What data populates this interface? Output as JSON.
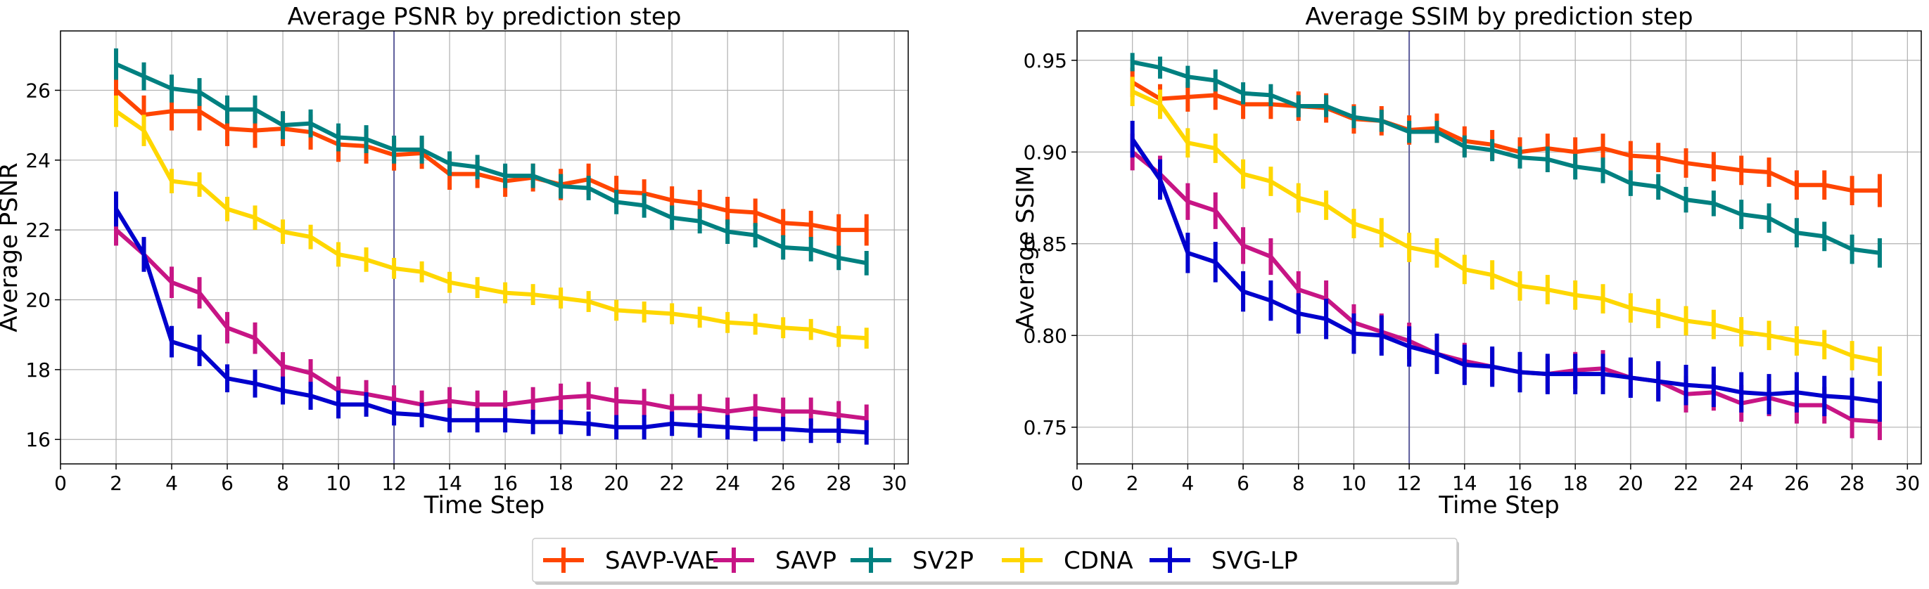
{
  "legend": {
    "placement": "bottom-center",
    "entries": [
      {
        "name": "SAVP-VAE",
        "color": "#ff4500"
      },
      {
        "name": "SAVP",
        "color": "#c71585"
      },
      {
        "name": "SV2P",
        "color": "#008080"
      },
      {
        "name": "CDNA",
        "color": "#ffd700"
      },
      {
        "name": "SVG-LP",
        "color": "#0000cd"
      }
    ]
  },
  "chart_data": [
    {
      "type": "line",
      "title": "Average PSNR by prediction step",
      "xlabel": "Time Step",
      "ylabel": "Average PSNR",
      "xlim": [
        0,
        30.5
      ],
      "ylim": [
        15.3,
        27.7
      ],
      "xticks": [
        0,
        2,
        4,
        6,
        8,
        10,
        12,
        14,
        16,
        18,
        20,
        22,
        24,
        26,
        28,
        30
      ],
      "yticks": [
        16,
        18,
        20,
        22,
        24,
        26
      ],
      "vline": 12,
      "vline_color": "#5b5b9a",
      "grid": true,
      "x": [
        2,
        3,
        4,
        5,
        6,
        7,
        8,
        9,
        10,
        11,
        12,
        13,
        14,
        15,
        16,
        17,
        18,
        19,
        20,
        21,
        22,
        23,
        24,
        25,
        26,
        27,
        28,
        29
      ],
      "series": [
        {
          "name": "SAVP-VAE",
          "color": "#ff4500",
          "values": [
            26.0,
            25.3,
            25.4,
            25.4,
            24.9,
            24.85,
            24.9,
            24.8,
            24.45,
            24.4,
            24.15,
            24.2,
            23.6,
            23.6,
            23.4,
            23.5,
            23.3,
            23.45,
            23.1,
            23.05,
            22.85,
            22.75,
            22.55,
            22.5,
            22.2,
            22.15,
            22.0,
            22.0
          ],
          "errors": [
            0.5,
            0.55,
            0.55,
            0.55,
            0.5,
            0.5,
            0.5,
            0.5,
            0.5,
            0.5,
            0.45,
            0.45,
            0.45,
            0.4,
            0.45,
            0.4,
            0.45,
            0.45,
            0.45,
            0.4,
            0.4,
            0.4,
            0.4,
            0.4,
            0.4,
            0.4,
            0.45,
            0.45
          ]
        },
        {
          "name": "SAVP",
          "color": "#c71585",
          "values": [
            22.0,
            21.3,
            20.5,
            20.2,
            19.2,
            18.9,
            18.1,
            17.9,
            17.4,
            17.3,
            17.15,
            17.0,
            17.1,
            17.0,
            17.0,
            17.1,
            17.2,
            17.25,
            17.1,
            17.05,
            16.9,
            16.9,
            16.8,
            16.9,
            16.8,
            16.8,
            16.7,
            16.6
          ],
          "errors": [
            0.45,
            0.45,
            0.45,
            0.45,
            0.45,
            0.45,
            0.4,
            0.4,
            0.4,
            0.4,
            0.4,
            0.4,
            0.4,
            0.4,
            0.4,
            0.4,
            0.4,
            0.4,
            0.4,
            0.4,
            0.4,
            0.4,
            0.4,
            0.4,
            0.4,
            0.4,
            0.4,
            0.4
          ]
        },
        {
          "name": "SV2P",
          "color": "#008080",
          "values": [
            26.75,
            26.4,
            26.05,
            25.95,
            25.45,
            25.45,
            25.0,
            25.05,
            24.65,
            24.6,
            24.3,
            24.3,
            23.9,
            23.8,
            23.55,
            23.55,
            23.25,
            23.2,
            22.8,
            22.7,
            22.35,
            22.25,
            21.95,
            21.85,
            21.5,
            21.45,
            21.2,
            21.05
          ],
          "errors": [
            0.45,
            0.4,
            0.4,
            0.4,
            0.4,
            0.4,
            0.4,
            0.4,
            0.4,
            0.4,
            0.4,
            0.4,
            0.35,
            0.35,
            0.35,
            0.35,
            0.35,
            0.35,
            0.35,
            0.35,
            0.35,
            0.35,
            0.35,
            0.35,
            0.35,
            0.35,
            0.35,
            0.35
          ]
        },
        {
          "name": "CDNA",
          "color": "#ffd700",
          "values": [
            25.4,
            24.85,
            23.4,
            23.3,
            22.6,
            22.35,
            21.95,
            21.8,
            21.3,
            21.15,
            20.9,
            20.8,
            20.5,
            20.35,
            20.2,
            20.15,
            20.05,
            19.95,
            19.7,
            19.65,
            19.6,
            19.5,
            19.35,
            19.3,
            19.2,
            19.15,
            18.95,
            18.9
          ],
          "errors": [
            0.45,
            0.45,
            0.35,
            0.35,
            0.35,
            0.35,
            0.35,
            0.35,
            0.35,
            0.35,
            0.3,
            0.3,
            0.3,
            0.3,
            0.3,
            0.3,
            0.3,
            0.3,
            0.3,
            0.3,
            0.3,
            0.3,
            0.3,
            0.3,
            0.3,
            0.3,
            0.3,
            0.3
          ]
        },
        {
          "name": "SVG-LP",
          "color": "#0000cd",
          "values": [
            22.6,
            21.3,
            18.8,
            18.55,
            17.75,
            17.6,
            17.4,
            17.25,
            17.0,
            17.0,
            16.75,
            16.7,
            16.55,
            16.55,
            16.55,
            16.5,
            16.5,
            16.45,
            16.35,
            16.35,
            16.45,
            16.4,
            16.35,
            16.3,
            16.3,
            16.25,
            16.25,
            16.2
          ],
          "errors": [
            0.5,
            0.5,
            0.45,
            0.45,
            0.4,
            0.4,
            0.4,
            0.4,
            0.4,
            0.35,
            0.35,
            0.35,
            0.35,
            0.35,
            0.35,
            0.35,
            0.35,
            0.35,
            0.35,
            0.35,
            0.35,
            0.35,
            0.35,
            0.35,
            0.35,
            0.35,
            0.35,
            0.35
          ]
        }
      ]
    },
    {
      "type": "line",
      "title": "Average SSIM by prediction step",
      "xlabel": "Time Step",
      "ylabel": "Average SSIM",
      "xlim": [
        0,
        30.5
      ],
      "ylim": [
        0.73,
        0.966
      ],
      "xticks": [
        0,
        2,
        4,
        6,
        8,
        10,
        12,
        14,
        16,
        18,
        20,
        22,
        24,
        26,
        28,
        30
      ],
      "yticks": [
        0.75,
        0.8,
        0.85,
        0.9,
        0.95
      ],
      "ytick_labels": [
        "0.75",
        "0.80",
        "0.85",
        "0.90",
        "0.95"
      ],
      "vline": 12,
      "vline_color": "#5b5b9a",
      "grid": true,
      "x": [
        2,
        3,
        4,
        5,
        6,
        7,
        8,
        9,
        10,
        11,
        12,
        13,
        14,
        15,
        16,
        17,
        18,
        19,
        20,
        21,
        22,
        23,
        24,
        25,
        26,
        27,
        28,
        29
      ],
      "series": [
        {
          "name": "SAVP-VAE",
          "color": "#ff4500",
          "values": [
            0.938,
            0.929,
            0.93,
            0.931,
            0.926,
            0.926,
            0.925,
            0.924,
            0.918,
            0.917,
            0.912,
            0.913,
            0.906,
            0.904,
            0.9,
            0.902,
            0.9,
            0.902,
            0.898,
            0.897,
            0.894,
            0.892,
            0.89,
            0.889,
            0.882,
            0.882,
            0.879,
            0.879
          ],
          "errors": [
            0.008,
            0.008,
            0.008,
            0.008,
            0.008,
            0.008,
            0.008,
            0.008,
            0.008,
            0.008,
            0.008,
            0.008,
            0.008,
            0.008,
            0.008,
            0.008,
            0.008,
            0.008,
            0.008,
            0.008,
            0.008,
            0.008,
            0.008,
            0.008,
            0.008,
            0.008,
            0.008,
            0.009
          ]
        },
        {
          "name": "SAVP",
          "color": "#c71585",
          "values": [
            0.9,
            0.888,
            0.873,
            0.868,
            0.849,
            0.843,
            0.825,
            0.82,
            0.807,
            0.802,
            0.797,
            0.79,
            0.786,
            0.783,
            0.78,
            0.779,
            0.781,
            0.782,
            0.777,
            0.775,
            0.768,
            0.769,
            0.763,
            0.766,
            0.762,
            0.762,
            0.754,
            0.753
          ],
          "errors": [
            0.01,
            0.01,
            0.01,
            0.01,
            0.01,
            0.01,
            0.01,
            0.01,
            0.01,
            0.01,
            0.01,
            0.01,
            0.01,
            0.01,
            0.01,
            0.01,
            0.01,
            0.01,
            0.01,
            0.01,
            0.01,
            0.01,
            0.01,
            0.01,
            0.01,
            0.01,
            0.01,
            0.01
          ]
        },
        {
          "name": "SV2P",
          "color": "#008080",
          "values": [
            0.949,
            0.946,
            0.941,
            0.939,
            0.932,
            0.931,
            0.925,
            0.925,
            0.919,
            0.917,
            0.911,
            0.911,
            0.903,
            0.901,
            0.897,
            0.896,
            0.892,
            0.89,
            0.883,
            0.881,
            0.874,
            0.872,
            0.866,
            0.864,
            0.856,
            0.854,
            0.847,
            0.845
          ],
          "errors": [
            0.005,
            0.006,
            0.006,
            0.006,
            0.006,
            0.006,
            0.006,
            0.006,
            0.006,
            0.006,
            0.006,
            0.006,
            0.006,
            0.006,
            0.006,
            0.007,
            0.007,
            0.007,
            0.007,
            0.007,
            0.007,
            0.007,
            0.008,
            0.008,
            0.008,
            0.008,
            0.008,
            0.008
          ]
        },
        {
          "name": "CDNA",
          "color": "#ffd700",
          "values": [
            0.933,
            0.926,
            0.905,
            0.902,
            0.888,
            0.884,
            0.875,
            0.871,
            0.861,
            0.856,
            0.848,
            0.845,
            0.836,
            0.833,
            0.827,
            0.825,
            0.822,
            0.82,
            0.815,
            0.812,
            0.808,
            0.806,
            0.802,
            0.8,
            0.797,
            0.795,
            0.789,
            0.786
          ],
          "errors": [
            0.008,
            0.008,
            0.008,
            0.008,
            0.008,
            0.008,
            0.008,
            0.008,
            0.008,
            0.008,
            0.008,
            0.008,
            0.008,
            0.008,
            0.008,
            0.008,
            0.008,
            0.008,
            0.008,
            0.008,
            0.008,
            0.008,
            0.008,
            0.008,
            0.008,
            0.008,
            0.008,
            0.008
          ]
        },
        {
          "name": "SVG-LP",
          "color": "#0000cd",
          "values": [
            0.907,
            0.885,
            0.845,
            0.84,
            0.824,
            0.819,
            0.812,
            0.809,
            0.801,
            0.8,
            0.794,
            0.79,
            0.784,
            0.783,
            0.78,
            0.779,
            0.779,
            0.779,
            0.777,
            0.775,
            0.773,
            0.772,
            0.769,
            0.768,
            0.769,
            0.767,
            0.766,
            0.764
          ],
          "errors": [
            0.01,
            0.011,
            0.011,
            0.011,
            0.011,
            0.011,
            0.011,
            0.011,
            0.011,
            0.011,
            0.011,
            0.011,
            0.011,
            0.011,
            0.011,
            0.011,
            0.011,
            0.011,
            0.011,
            0.011,
            0.011,
            0.011,
            0.011,
            0.011,
            0.011,
            0.011,
            0.011,
            0.011
          ]
        }
      ]
    }
  ]
}
